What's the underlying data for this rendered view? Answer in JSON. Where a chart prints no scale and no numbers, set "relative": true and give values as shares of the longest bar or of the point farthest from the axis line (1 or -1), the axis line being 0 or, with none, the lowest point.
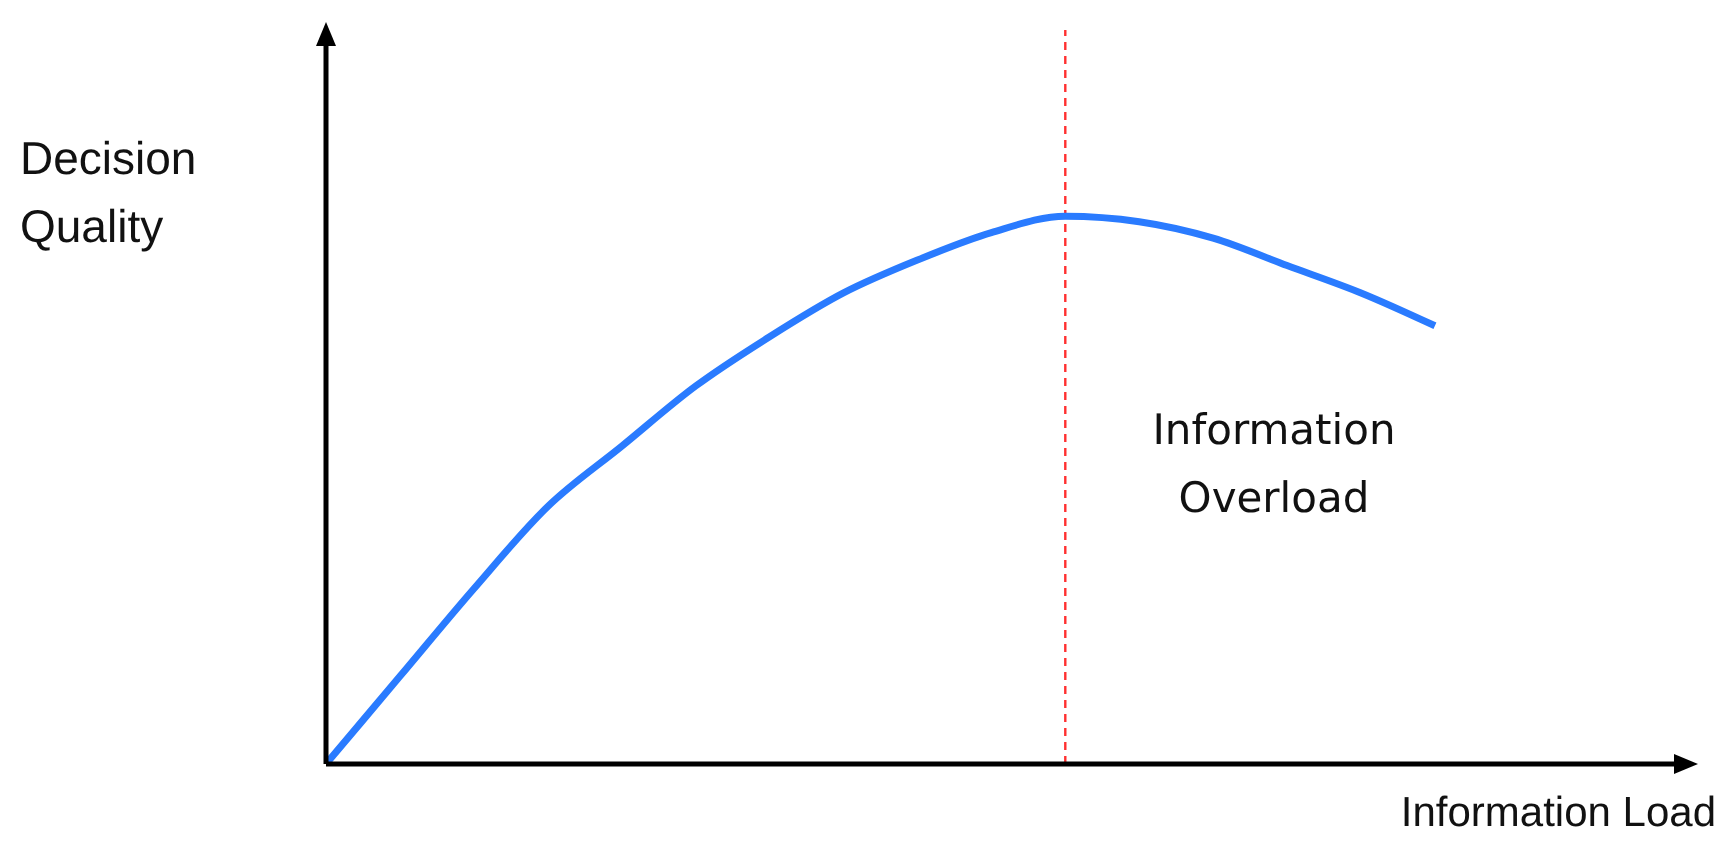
{
  "chart_data": {
    "type": "line",
    "relative": true,
    "xlabel": "Information Load",
    "ylabel": "Decision Quality",
    "categories": [
      null,
      null,
      null,
      null,
      null,
      null,
      null,
      null,
      null,
      null,
      null,
      null,
      null,
      null,
      null,
      null
    ],
    "series": [
      {
        "color": "#2a7bff",
        "values": [
          0,
          0.16,
          0.32,
          0.47,
          0.58,
          0.69,
          0.78,
          0.86,
          0.92,
          0.97,
          1,
          0.99,
          0.96,
          0.91,
          0.86,
          0.8
        ]
      }
    ],
    "marker": "none",
    "line_style": "solid",
    "grid": false,
    "legend": false,
    "annotations": [
      "Information Overload"
    ]
  }
}
